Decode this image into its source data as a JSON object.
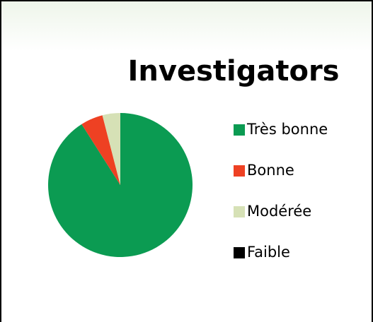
{
  "chart_data": {
    "type": "pie",
    "title": "Investigators",
    "categories": [
      "Très bonne",
      "Bonne",
      "Modérée",
      "Faible"
    ],
    "values": [
      91,
      5,
      4,
      0
    ],
    "colors": [
      "#0b9b52",
      "#ee4123",
      "#d6e1b6",
      "#000000"
    ],
    "legend": "right"
  }
}
